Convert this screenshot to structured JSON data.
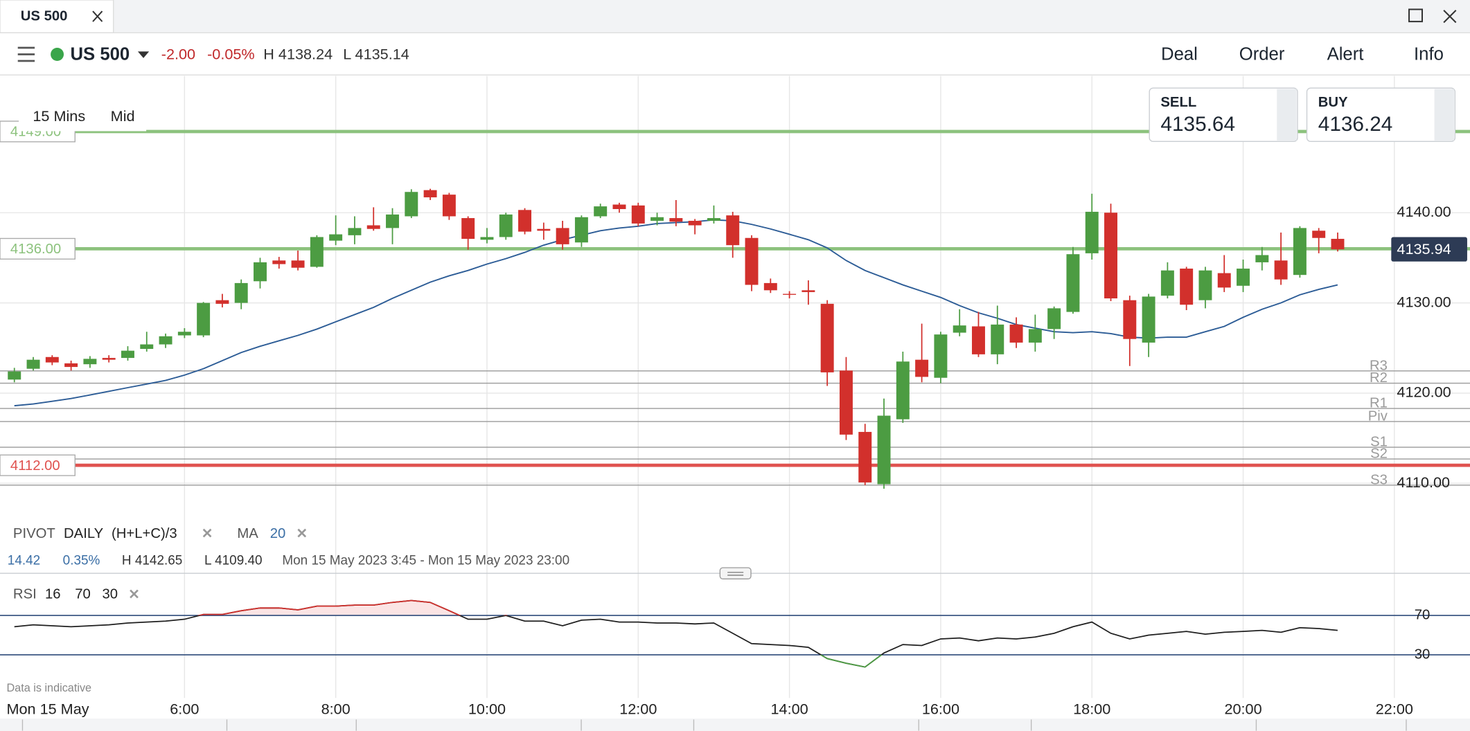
{
  "tab": {
    "title": "US 500"
  },
  "toolbar": {
    "instrument": "US 500",
    "change": "-2.00",
    "change_pct": "-0.05%",
    "high": "H 4138.24",
    "low": "L 4135.14",
    "buttons": [
      "Deal",
      "Order",
      "Alert",
      "Info"
    ]
  },
  "prices": {
    "sell_label": "SELL",
    "sell": "4135.64",
    "buy_label": "BUY",
    "buy": "4136.24"
  },
  "chart_settings": {
    "interval": "15 Mins",
    "price_type": "Mid"
  },
  "indicators": {
    "pivot": [
      "PIVOT",
      "DAILY",
      "(H+L+C)/3"
    ],
    "ma": [
      "MA",
      "20"
    ]
  },
  "info": {
    "change": "14.42",
    "change_pct": "0.35%",
    "high": "H 4142.65",
    "low": "L 4109.40",
    "range": "Mon 15 May 2023 3:45 - Mon 15 May 2023 23:00"
  },
  "rsi_header": [
    "RSI",
    "16",
    "70",
    "30"
  ],
  "footer_note": "Data is indicative",
  "chart_data": [
    {
      "type": "candlestick",
      "date_label": "Mon 15 May",
      "x": [
        3.75,
        4,
        4.25,
        4.5,
        4.75,
        5,
        5.25,
        5.5,
        5.75,
        6,
        6.25,
        6.5,
        6.75,
        7,
        7.25,
        7.5,
        7.75,
        8,
        8.25,
        8.5,
        8.75,
        9,
        9.25,
        9.5,
        9.75,
        10,
        10.25,
        10.5,
        10.75,
        11,
        11.25,
        11.5,
        11.75,
        12,
        12.25,
        12.5,
        12.75,
        13,
        13.25,
        13.5,
        13.75,
        14,
        14.25,
        14.5,
        14.75,
        15,
        15.25,
        15.5,
        15.75,
        16,
        16.25,
        16.5,
        16.75,
        17,
        17.25,
        17.5,
        17.75,
        18,
        18.25,
        18.5,
        18.75,
        19,
        19.25,
        19.5,
        19.75,
        20,
        20.25,
        20.5,
        20.75,
        21,
        21.25
      ],
      "open": [
        4121.5,
        4122.7,
        4124.0,
        4123.3,
        4123.2,
        4123.9,
        4123.9,
        4124.9,
        4125.4,
        4126.4,
        4126.4,
        4130.3,
        4130.0,
        4132.4,
        4134.7,
        4134.7,
        4134.0,
        4136.9,
        4137.5,
        4138.6,
        4138.3,
        4139.6,
        4142.5,
        4142.0,
        4139.4,
        4137.0,
        4137.3,
        4140.3,
        4138.2,
        4138.3,
        4136.7,
        4139.6,
        4140.9,
        4140.8,
        4139.1,
        4139.4,
        4139.1,
        4139.1,
        4139.7,
        4137.2,
        4132.2,
        4131.0,
        4131.4,
        4129.9,
        4122.5,
        4115.7,
        4109.9,
        4117.1,
        4123.7,
        4121.7,
        4126.7,
        4127.4,
        4124.3,
        4127.6,
        4125.6,
        4127.1,
        4129.0,
        4135.5,
        4140.0,
        4130.3,
        4125.6,
        4130.8,
        4133.8,
        4130.3,
        4133.3,
        4131.9,
        4134.5,
        4134.7,
        4133.1,
        4138.0,
        4137.1
      ],
      "high": [
        4122.8,
        4124.0,
        4124.2,
        4123.6,
        4124.1,
        4124.2,
        4125.2,
        4126.8,
        4126.6,
        4127.2,
        4130.1,
        4131.0,
        4132.6,
        4135.0,
        4135.1,
        4135.8,
        4137.5,
        4139.7,
        4139.6,
        4140.6,
        4140.5,
        4142.6,
        4142.65,
        4142.2,
        4139.6,
        4138.3,
        4140.0,
        4140.5,
        4138.9,
        4139.1,
        4139.7,
        4141.0,
        4141.1,
        4141.1,
        4140.0,
        4141.4,
        4139.3,
        4140.8,
        4140.1,
        4137.5,
        4132.7,
        4131.3,
        4132.5,
        4130.3,
        4124.0,
        4116.6,
        4119.4,
        4124.6,
        4127.7,
        4126.8,
        4129.3,
        4129.0,
        4129.7,
        4128.4,
        4128.7,
        4129.6,
        4136.2,
        4142.1,
        4141.0,
        4130.8,
        4131.0,
        4134.5,
        4134.0,
        4134.0,
        4135.3,
        4134.8,
        4136.2,
        4137.8,
        4138.5,
        4138.3,
        4137.8
      ],
      "low": [
        4121.2,
        4122.5,
        4123.1,
        4122.5,
        4122.8,
        4123.4,
        4123.6,
        4124.6,
        4125.0,
        4126.1,
        4126.2,
        4129.5,
        4129.3,
        4131.6,
        4133.8,
        4133.6,
        4133.9,
        4136.4,
        4136.5,
        4138.0,
        4136.5,
        4139.4,
        4141.4,
        4139.2,
        4135.9,
        4136.6,
        4137.0,
        4137.6,
        4137.0,
        4135.9,
        4136.2,
        4139.4,
        4140.0,
        4138.5,
        4138.6,
        4138.5,
        4137.6,
        4138.8,
        4135.0,
        4131.3,
        4131.1,
        4130.5,
        4129.8,
        4120.8,
        4114.8,
        4109.8,
        4109.4,
        4116.7,
        4121.2,
        4121.1,
        4126.3,
        4124.0,
        4123.2,
        4125.0,
        4124.6,
        4126.0,
        4128.8,
        4134.8,
        4130.2,
        4123.0,
        4124.0,
        4130.5,
        4129.2,
        4129.4,
        4131.2,
        4131.2,
        4133.6,
        4132.0,
        4132.8,
        4135.5,
        4135.7
      ],
      "close": [
        4122.4,
        4123.7,
        4123.4,
        4122.9,
        4123.8,
        4123.7,
        4124.7,
        4125.4,
        4126.3,
        4126.8,
        4130.0,
        4129.9,
        4132.2,
        4134.5,
        4134.3,
        4133.9,
        4137.3,
        4137.6,
        4138.3,
        4138.2,
        4139.8,
        4142.3,
        4141.7,
        4139.6,
        4137.1,
        4137.3,
        4139.8,
        4137.9,
        4138.0,
        4136.5,
        4139.5,
        4140.7,
        4140.4,
        4138.8,
        4139.5,
        4139.0,
        4138.6,
        4139.4,
        4136.4,
        4132.0,
        4131.4,
        4130.9,
        4131.2,
        4122.3,
        4115.4,
        4110.1,
        4117.5,
        4123.5,
        4121.8,
        4126.5,
        4127.5,
        4124.3,
        4127.6,
        4125.6,
        4127.1,
        4129.4,
        4135.4,
        4140.1,
        4130.5,
        4126.0,
        4130.7,
        4133.6,
        4129.8,
        4133.6,
        4131.7,
        4133.8,
        4135.3,
        4132.6,
        4138.3,
        4137.2,
        4135.94
      ],
      "up_color": "#4c9c42",
      "down_color": "#d2302c",
      "lines": [
        {
          "color": "#2c5c96",
          "values": [
            4118.6,
            4118.8,
            4119.1,
            4119.4,
            4119.8,
            4120.2,
            4120.6,
            4121.0,
            4121.4,
            4122.0,
            4122.7,
            4123.6,
            4124.5,
            4125.2,
            4125.8,
            4126.4,
            4127.1,
            4127.9,
            4128.7,
            4129.5,
            4130.5,
            4131.4,
            4132.3,
            4133.0,
            4133.6,
            4134.3,
            4134.9,
            4135.6,
            4136.4,
            4137.0,
            4137.5,
            4138.0,
            4138.3,
            4138.5,
            4138.8,
            4138.9,
            4139.0,
            4139.2,
            4139.1,
            4138.7,
            4138.2,
            4137.6,
            4137.0,
            4136.1,
            4134.7,
            4133.6,
            4132.8,
            4132.0,
            4131.3,
            4130.6,
            4129.7,
            4128.9,
            4128.3,
            4127.6,
            4127.2,
            4126.8,
            4126.7,
            4126.8,
            4126.6,
            4126.2,
            4126.1,
            4126.2,
            4126.2,
            4126.8,
            4127.4,
            4128.4,
            4129.3,
            4130.0,
            4130.9,
            4131.5,
            4132.0
          ]
        }
      ],
      "price_levels": [
        {
          "value": 4149,
          "label": "4149.00",
          "color": "#8cc27d"
        },
        {
          "value": 4136,
          "label": "4136.00",
          "color": "#8cc27d"
        },
        {
          "value": 4112,
          "label": "4112.00",
          "color": "#e0524f"
        }
      ],
      "pivot_levels": [
        {
          "value": 4122.46,
          "label": "R3"
        },
        {
          "value": 4121.1,
          "label": "R2"
        },
        {
          "value": 4118.3,
          "label": "R1"
        },
        {
          "value": 4116.85,
          "label": "Piv"
        },
        {
          "value": 4114.0,
          "label": "S1"
        },
        {
          "value": 4112.7,
          "label": "S2"
        },
        {
          "value": 4109.8,
          "label": "S3"
        }
      ],
      "pivot_color": "#9a9a9a",
      "last_price": {
        "value": 4135.94,
        "label": "4135.94"
      },
      "last_price_color": "#2d3b55",
      "xlim": [
        3.56,
        23.0
      ],
      "xticks": [
        {
          "value": 6,
          "label": "6:00"
        },
        {
          "value": 8,
          "label": "8:00"
        },
        {
          "value": 10,
          "label": "10:00"
        },
        {
          "value": 12,
          "label": "12:00"
        },
        {
          "value": 14,
          "label": "14:00"
        },
        {
          "value": 16,
          "label": "16:00"
        },
        {
          "value": 18,
          "label": "18:00"
        },
        {
          "value": 20,
          "label": "20:00"
        },
        {
          "value": 22,
          "label": "22:00"
        }
      ],
      "ylim": [
        4107.5,
        4155.06
      ],
      "yticks": [
        {
          "value": 4110,
          "label": "4110.00"
        },
        {
          "value": 4120,
          "label": "4120.00"
        },
        {
          "value": 4130,
          "label": "4130.00"
        },
        {
          "value": 4140,
          "label": "4140.00"
        }
      ],
      "grid": true
    },
    {
      "type": "line",
      "values": [
        58.6,
        60.5,
        59.5,
        58.6,
        59.5,
        60.5,
        62.4,
        63.3,
        64.3,
        66.2,
        71.0,
        71.0,
        74.8,
        77.6,
        77.6,
        75.7,
        79.5,
        79.5,
        80.5,
        80.5,
        83.3,
        85.2,
        83.3,
        74.8,
        66.2,
        66.2,
        70.0,
        64.3,
        64.3,
        59.5,
        65.2,
        66.2,
        63.3,
        63.3,
        62.4,
        62.4,
        61.4,
        62.4,
        51.9,
        41.4,
        40.5,
        39.5,
        37.6,
        26.2,
        21.4,
        17.6,
        31.9,
        40.5,
        39.5,
        46.2,
        47.1,
        44.3,
        47.1,
        46.2,
        48.1,
        51.9,
        58.6,
        63.3,
        51.9,
        46.2,
        50.0,
        51.9,
        53.8,
        51.0,
        52.9,
        53.8,
        54.8,
        52.9,
        57.6,
        56.7,
        54.8
      ],
      "color": "#1f1f1f",
      "overbought_color": "#d2302c",
      "oversold_color": "#4c9c42",
      "fill_color": "#fbe4e4",
      "band_color": "#2d4a7a",
      "ylim": [
        -13.8,
        103.3
      ],
      "yticks": [
        30,
        70
      ]
    }
  ]
}
